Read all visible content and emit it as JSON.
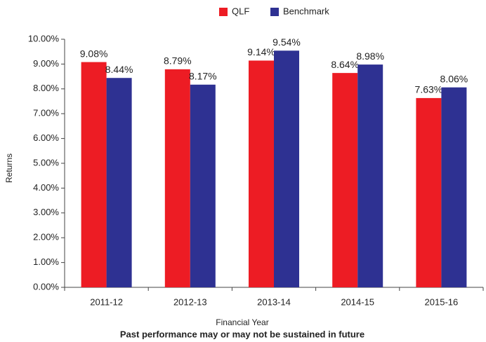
{
  "chart_data": {
    "type": "bar",
    "categories": [
      "2011-12",
      "2012-13",
      "2013-14",
      "2014-15",
      "2015-16"
    ],
    "series": [
      {
        "name": "QLF",
        "color": "#ed1c24",
        "values": [
          9.08,
          8.79,
          9.14,
          8.64,
          7.63
        ],
        "value_labels": [
          "9.08%",
          "8.79%",
          "9.14%",
          "8.64%",
          "7.63%"
        ]
      },
      {
        "name": "Benchmark",
        "color": "#2e3192",
        "values": [
          8.44,
          8.17,
          9.54,
          8.98,
          8.06
        ],
        "value_labels": [
          "8.44%",
          "8.17%",
          "9.54%",
          "8.98%",
          "8.06%"
        ]
      }
    ],
    "ylim": [
      0,
      10
    ],
    "yticks": [
      {
        "value": 0,
        "label": "0.00%"
      },
      {
        "value": 1,
        "label": "1.00%"
      },
      {
        "value": 2,
        "label": "2.00%"
      },
      {
        "value": 3,
        "label": "3.00%"
      },
      {
        "value": 4,
        "label": "4.00%"
      },
      {
        "value": 5,
        "label": "5.00%"
      },
      {
        "value": 6,
        "label": "6.00%"
      },
      {
        "value": 7,
        "label": "7.00%"
      },
      {
        "value": 8,
        "label": "8.00%"
      },
      {
        "value": 9,
        "label": "9.00%"
      },
      {
        "value": 10,
        "label": "10.00%"
      }
    ],
    "y_label": "Returns",
    "x_label": "Financial Year",
    "footnote": "Past performance may or may not be sustained in future",
    "legend": "top",
    "grid": false
  }
}
